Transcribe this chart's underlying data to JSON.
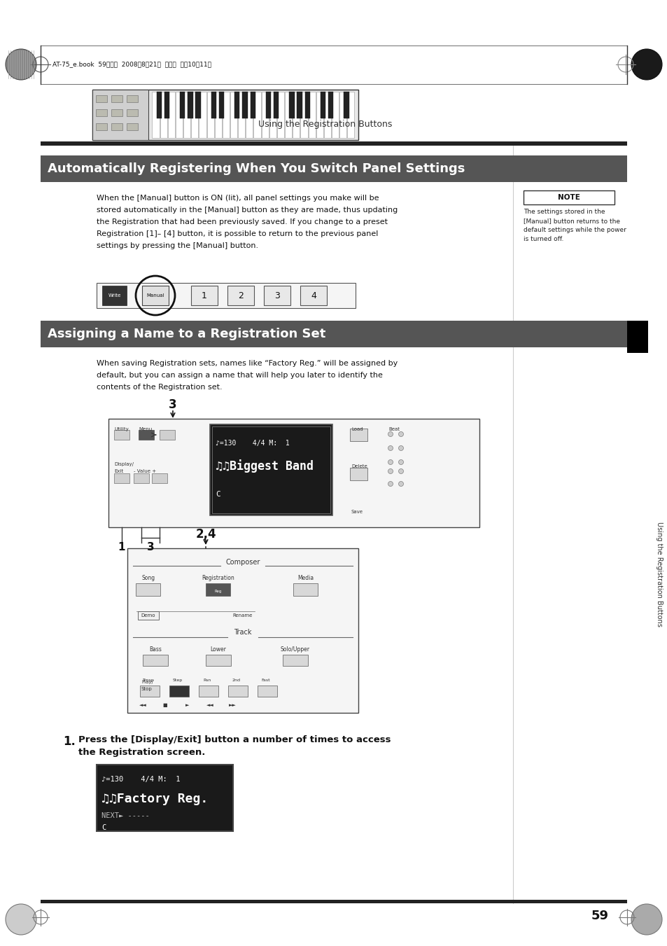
{
  "page_bg": "#ffffff",
  "page_num": "59",
  "header_text": "AT-75_e.book  59ページ  2008年8月21日  木曜日  午前10時11分",
  "section1_title": "Automatically Registering When You Switch Panel Settings",
  "section1_title_bg": "#555555",
  "section1_title_color": "#ffffff",
  "section1_body_lines": [
    "When the [Manual] button is ON (lit), all panel settings you make will be",
    "stored automatically in the [Manual] button as they are made, thus updating",
    "the Registration that had been previously saved. If you change to a preset",
    "Registration [1]– [4] button, it is possible to return to the previous panel",
    "settings by pressing the [Manual] button."
  ],
  "note_label": "NOTE",
  "note_text_lines": [
    "The settings stored in the",
    "[Manual] button returns to the",
    "default settings while the power",
    "is turned off."
  ],
  "section2_title": "Assigning a Name to a Registration Set",
  "section2_title_bg": "#555555",
  "section2_title_color": "#ffffff",
  "section2_body_lines": [
    "When saving Registration sets, names like “Factory Reg.” will be assigned by",
    "default, but you can assign a name that will help you later to identify the",
    "contents of the Registration set."
  ],
  "step1_line1": "Press the [Display/Exit] button a number of times to access",
  "step1_line2": "the Registration screen.",
  "side_label": "Using the Registration Buttons",
  "page_right_header": "Using the Registration Buttons",
  "display_text_line1": "♪=130    4/4 M:  1",
  "display_text_line2": "♫♫Biggest Band",
  "display_text_line3": "C",
  "display2_line1": "♪=130    4/4 M:  1",
  "display2_line2": "♫♫Factory Reg.",
  "display2_line3": "NEXT► -----",
  "display2_line4": "C"
}
